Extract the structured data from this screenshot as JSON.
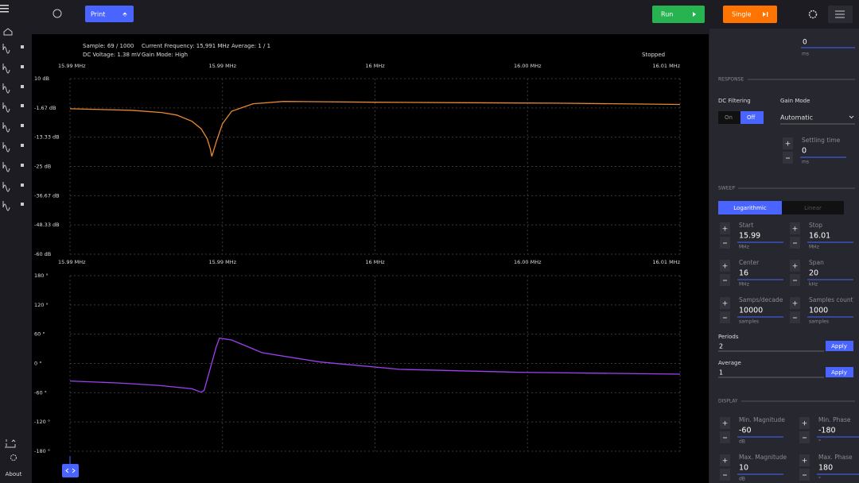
{
  "toolbar": {
    "print": "Print",
    "run": "Run",
    "single": "Single"
  },
  "info": {
    "sample": "Sample: 69 / 1000",
    "frequency": "Current Frequency: 15,991 MHz",
    "average": "Average: 1 / 1",
    "dc_voltage": "DC Voltage: 1.38 mV",
    "gain_mode": "Gain Mode: High",
    "status": "Stopped"
  },
  "sidebar": {
    "about": "About"
  },
  "panel": {
    "top_field": {
      "value": "0",
      "unit": "ms"
    },
    "response": {
      "title": "RESPONSE",
      "dc_filtering": "DC Filtering",
      "on": "On",
      "off": "Off",
      "gain_mode": "Gain Mode",
      "gain_value": "Automatic",
      "settling": {
        "label": "Settling time",
        "value": "0",
        "unit": "ms"
      }
    },
    "sweep": {
      "title": "SWEEP",
      "logarithmic": "Logarithmic",
      "linear": "Linear",
      "fields": [
        {
          "label": "Start",
          "value": "15.99",
          "unit": "MHz"
        },
        {
          "label": "Stop",
          "value": "16.01",
          "unit": "MHz"
        },
        {
          "label": "Center",
          "value": "16",
          "unit": "MHz"
        },
        {
          "label": "Span",
          "value": "20",
          "unit": "kHz"
        },
        {
          "label": "Samps/decade",
          "value": "10000",
          "unit": "samples"
        },
        {
          "label": "Samples count",
          "value": "1000",
          "unit": "samples"
        }
      ],
      "periods": {
        "label": "Periods",
        "value": "2",
        "button": "Apply"
      },
      "average": {
        "label": "Average",
        "value": "1",
        "button": "Apply"
      }
    },
    "display": {
      "title": "DISPLAY",
      "fields": [
        {
          "label": "Min. Magnitude",
          "value": "-60",
          "unit": "dB"
        },
        {
          "label": "Min. Phase",
          "value": "-180",
          "unit": "°"
        },
        {
          "label": "Max. Magnitude",
          "value": "10",
          "unit": "dB"
        },
        {
          "label": "Max. Phase",
          "value": "180",
          "unit": "°"
        }
      ]
    }
  },
  "chart_data": [
    {
      "type": "line",
      "x": [
        15.99,
        15.992,
        15.993,
        15.9935,
        15.994,
        15.9943,
        15.9945,
        15.9946,
        15.99465,
        15.9948,
        15.995,
        15.9953,
        15.996,
        15.997,
        15.998,
        16.0,
        16.003,
        16.006,
        16.01
      ],
      "series": [
        {
          "color": "#e8892f",
          "values": [
            -2.0,
            -2.6,
            -3.5,
            -4.5,
            -7,
            -10,
            -14,
            -18,
            -21,
            -15,
            -8,
            -3,
            0,
            0.9,
            0.8,
            0.6,
            0.4,
            0.2,
            -0.3
          ]
        }
      ],
      "xlim": [
        15.99,
        16.01
      ],
      "xticks": [
        {
          "value": 15.99,
          "label": "15.99 MHz"
        },
        {
          "value": 15.995,
          "label": "15.99 MHz"
        },
        {
          "value": 16,
          "label": "16 MHz"
        },
        {
          "value": 16.005,
          "label": "16.00 MHz"
        },
        {
          "value": 16.01,
          "label": "16.01 MHz"
        }
      ],
      "ylim": [
        -60,
        10
      ],
      "yticks": [
        {
          "value": 10,
          "label": "10 dB"
        },
        {
          "value": -1.67,
          "label": "-1.67 dB"
        },
        {
          "value": -13.33,
          "label": "-13.33 dB"
        },
        {
          "value": -25,
          "label": "-25 dB"
        },
        {
          "value": -36.67,
          "label": "-36.67 dB"
        },
        {
          "value": -48.33,
          "label": "-48.33 dB"
        },
        {
          "value": -60,
          "label": "-60 dB"
        }
      ],
      "grid": true
    },
    {
      "type": "line",
      "x": [
        15.99,
        15.9916,
        15.9929,
        15.994,
        15.9943,
        15.9944,
        15.9946,
        15.9948,
        15.9949,
        15.9953,
        15.9963,
        15.9982,
        16.0008,
        16.0047,
        16.01
      ],
      "series": [
        {
          "color": "#a040f2",
          "values": [
            -36,
            -40,
            -45,
            -52,
            -59,
            -55,
            -10,
            35,
            52,
            48,
            22,
            3,
            -12,
            -18,
            -22
          ]
        }
      ],
      "xlim": [
        15.99,
        16.01
      ],
      "xticks": [
        {
          "value": 15.99,
          "label": "15.99 MHz"
        },
        {
          "value": 15.995,
          "label": "15.99 MHz"
        },
        {
          "value": 16,
          "label": "16 MHz"
        },
        {
          "value": 16.005,
          "label": "16.00 MHz"
        },
        {
          "value": 16.01,
          "label": "16.01 MHz"
        }
      ],
      "ylim": [
        -180,
        180
      ],
      "yticks": [
        {
          "value": 180,
          "label": "180 °"
        },
        {
          "value": 120,
          "label": "120 °"
        },
        {
          "value": 60,
          "label": "60 °"
        },
        {
          "value": 0,
          "label": "0 °"
        },
        {
          "value": -60,
          "label": "-60 °"
        },
        {
          "value": -120,
          "label": "-120 °"
        },
        {
          "value": -180,
          "label": "-180 °"
        }
      ],
      "grid": true
    }
  ]
}
